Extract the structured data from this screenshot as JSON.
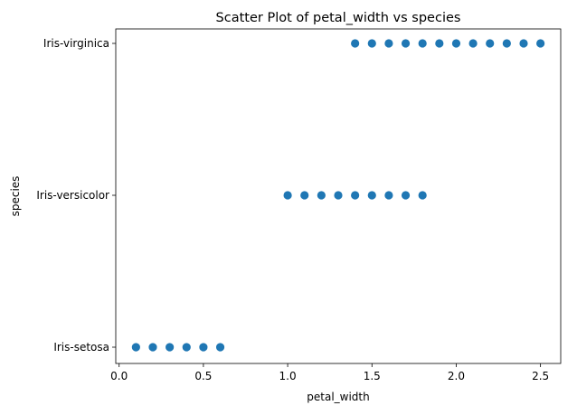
{
  "chart_data": {
    "type": "scatter",
    "title": "Scatter Plot of petal_width vs species",
    "xlabel": "petal_width",
    "ylabel": "species",
    "xlim": [
      -0.02,
      2.62
    ],
    "x_ticks": [
      0.0,
      0.5,
      1.0,
      1.5,
      2.0,
      2.5
    ],
    "x_tick_labels": [
      "0.0",
      "0.5",
      "1.0",
      "1.5",
      "2.0",
      "2.5"
    ],
    "categories": [
      "Iris-setosa",
      "Iris-versicolor",
      "Iris-virginica"
    ],
    "grid": false,
    "legend": false,
    "marker_color": "#1f77b4",
    "points": [
      {
        "species": "Iris-setosa",
        "petal_width": [
          0.1,
          0.2,
          0.3,
          0.4,
          0.5,
          0.6
        ]
      },
      {
        "species": "Iris-versicolor",
        "petal_width": [
          1.0,
          1.1,
          1.2,
          1.3,
          1.4,
          1.5,
          1.6,
          1.7,
          1.8
        ]
      },
      {
        "species": "Iris-virginica",
        "petal_width": [
          1.4,
          1.5,
          1.6,
          1.7,
          1.8,
          1.9,
          2.0,
          2.1,
          2.2,
          2.3,
          2.4,
          2.5
        ]
      }
    ]
  }
}
